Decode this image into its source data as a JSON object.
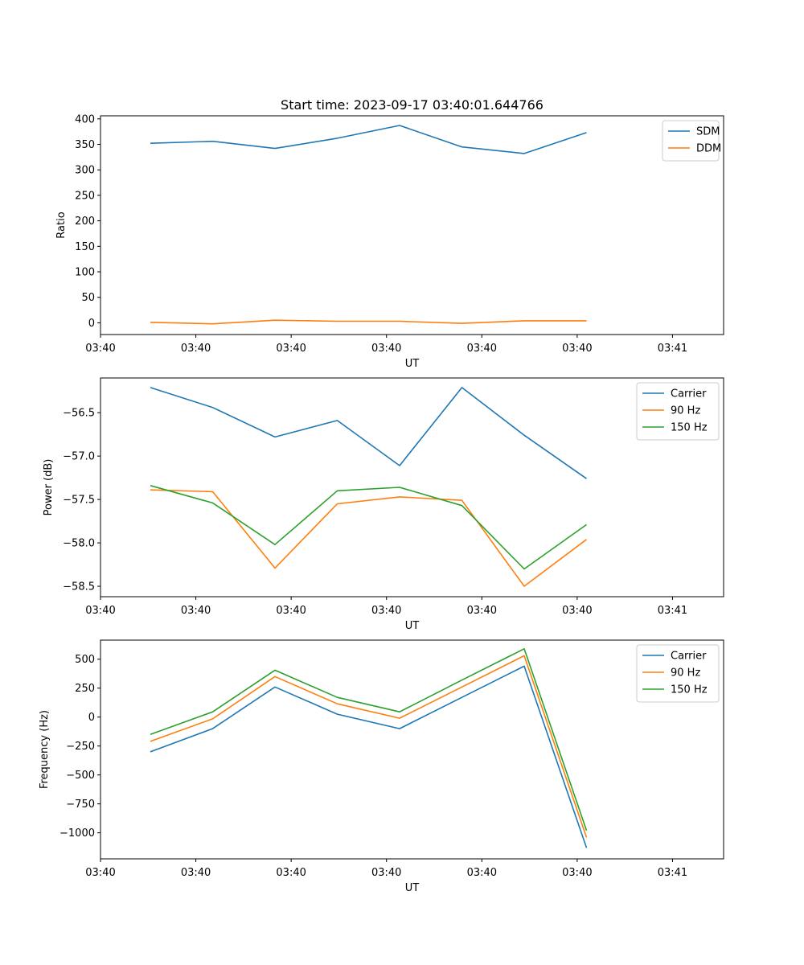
{
  "chart_data": [
    {
      "type": "line",
      "title": "Start time: 2023-09-17 03:40:01.644766",
      "xlabel": "UT",
      "ylabel": "Ratio",
      "x_index": [
        1,
        2,
        3,
        4,
        5,
        6,
        7,
        8
      ],
      "xlim": [
        0,
        10
      ],
      "x_ticks": [
        0,
        1.53,
        3.06,
        4.59,
        6.12,
        7.65,
        9.18
      ],
      "x_tick_labels": [
        "03:40",
        "03:40",
        "03:40",
        "03:40",
        "03:40",
        "03:40",
        "03:41"
      ],
      "ylim": [
        -23,
        406
      ],
      "y_ticks": [
        0,
        50,
        100,
        150,
        200,
        250,
        300,
        350,
        400
      ],
      "y_tick_labels": [
        "0",
        "50",
        "100",
        "150",
        "200",
        "250",
        "300",
        "350",
        "400"
      ],
      "legend_position": "top-right",
      "series": [
        {
          "name": "SDM",
          "color": "#1f77b4",
          "x": [
            0.8,
            1.8,
            2.8,
            3.8,
            4.8,
            5.8,
            6.8,
            7.8
          ],
          "values": [
            352,
            356,
            342,
            362,
            387,
            345,
            332,
            373
          ]
        },
        {
          "name": "DDM",
          "color": "#ff7f0e",
          "x": [
            0.8,
            1.8,
            2.8,
            3.8,
            4.8,
            5.8,
            6.8,
            7.8
          ],
          "values": [
            1,
            -2,
            5,
            3,
            3,
            -1,
            4,
            4
          ]
        }
      ]
    },
    {
      "type": "line",
      "xlabel": "UT",
      "ylabel": "Power (dB)",
      "xlim": [
        0,
        10
      ],
      "x_ticks": [
        0,
        1.53,
        3.06,
        4.59,
        6.12,
        7.65,
        9.18
      ],
      "x_tick_labels": [
        "03:40",
        "03:40",
        "03:40",
        "03:40",
        "03:40",
        "03:40",
        "03:41"
      ],
      "ylim": [
        -58.62,
        -56.1
      ],
      "y_ticks": [
        -58.5,
        -58.0,
        -57.5,
        -57.0,
        -56.5
      ],
      "y_tick_labels": [
        "−58.5",
        "−58.0",
        "−57.5",
        "−57.0",
        "−56.5"
      ],
      "legend_position": "top-right",
      "series": [
        {
          "name": "Carrier",
          "color": "#1f77b4",
          "x": [
            0.8,
            1.8,
            2.8,
            3.8,
            4.8,
            5.8,
            6.8,
            7.8
          ],
          "values": [
            -56.21,
            -56.44,
            -56.78,
            -56.59,
            -57.11,
            -56.21,
            -56.76,
            -57.26
          ]
        },
        {
          "name": "90 Hz",
          "color": "#ff7f0e",
          "x": [
            0.8,
            1.8,
            2.8,
            3.8,
            4.8,
            5.8,
            6.8,
            7.8
          ],
          "values": [
            -57.39,
            -57.41,
            -58.29,
            -57.55,
            -57.47,
            -57.51,
            -58.5,
            -57.96
          ]
        },
        {
          "name": "150 Hz",
          "color": "#2ca02c",
          "x": [
            0.8,
            1.8,
            2.8,
            3.8,
            4.8,
            5.8,
            6.8,
            7.8
          ],
          "values": [
            -57.34,
            -57.54,
            -58.02,
            -57.4,
            -57.36,
            -57.57,
            -58.3,
            -57.79
          ]
        }
      ]
    },
    {
      "type": "line",
      "xlabel": "UT",
      "ylabel": "Frequency (Hz)",
      "xlim": [
        0,
        10
      ],
      "x_ticks": [
        0,
        1.53,
        3.06,
        4.59,
        6.12,
        7.65,
        9.18
      ],
      "x_tick_labels": [
        "03:40",
        "03:40",
        "03:40",
        "03:40",
        "03:40",
        "03:40",
        "03:41"
      ],
      "ylim": [
        -1225,
        665
      ],
      "y_ticks": [
        -1000,
        -750,
        -500,
        -250,
        0,
        250,
        500
      ],
      "y_tick_labels": [
        "−1000",
        "−750",
        "−500",
        "−250",
        "0",
        "250",
        "500"
      ],
      "legend_position": "top-right",
      "series": [
        {
          "name": "Carrier",
          "color": "#1f77b4",
          "x": [
            0.8,
            1.8,
            2.8,
            3.8,
            4.8,
            5.8,
            6.8,
            7.8
          ],
          "values": [
            -300,
            -100,
            260,
            25,
            -100,
            170,
            440,
            -1130
          ]
        },
        {
          "name": "90 Hz",
          "color": "#ff7f0e",
          "x": [
            0.8,
            1.8,
            2.8,
            3.8,
            4.8,
            5.8,
            6.8,
            7.8
          ],
          "values": [
            -210,
            -15,
            350,
            115,
            -10,
            260,
            530,
            -1040
          ]
        },
        {
          "name": "150 Hz",
          "color": "#2ca02c",
          "x": [
            0.8,
            1.8,
            2.8,
            3.8,
            4.8,
            5.8,
            6.8,
            7.8
          ],
          "values": [
            -150,
            45,
            405,
            170,
            45,
            320,
            590,
            -980
          ]
        }
      ]
    }
  ]
}
